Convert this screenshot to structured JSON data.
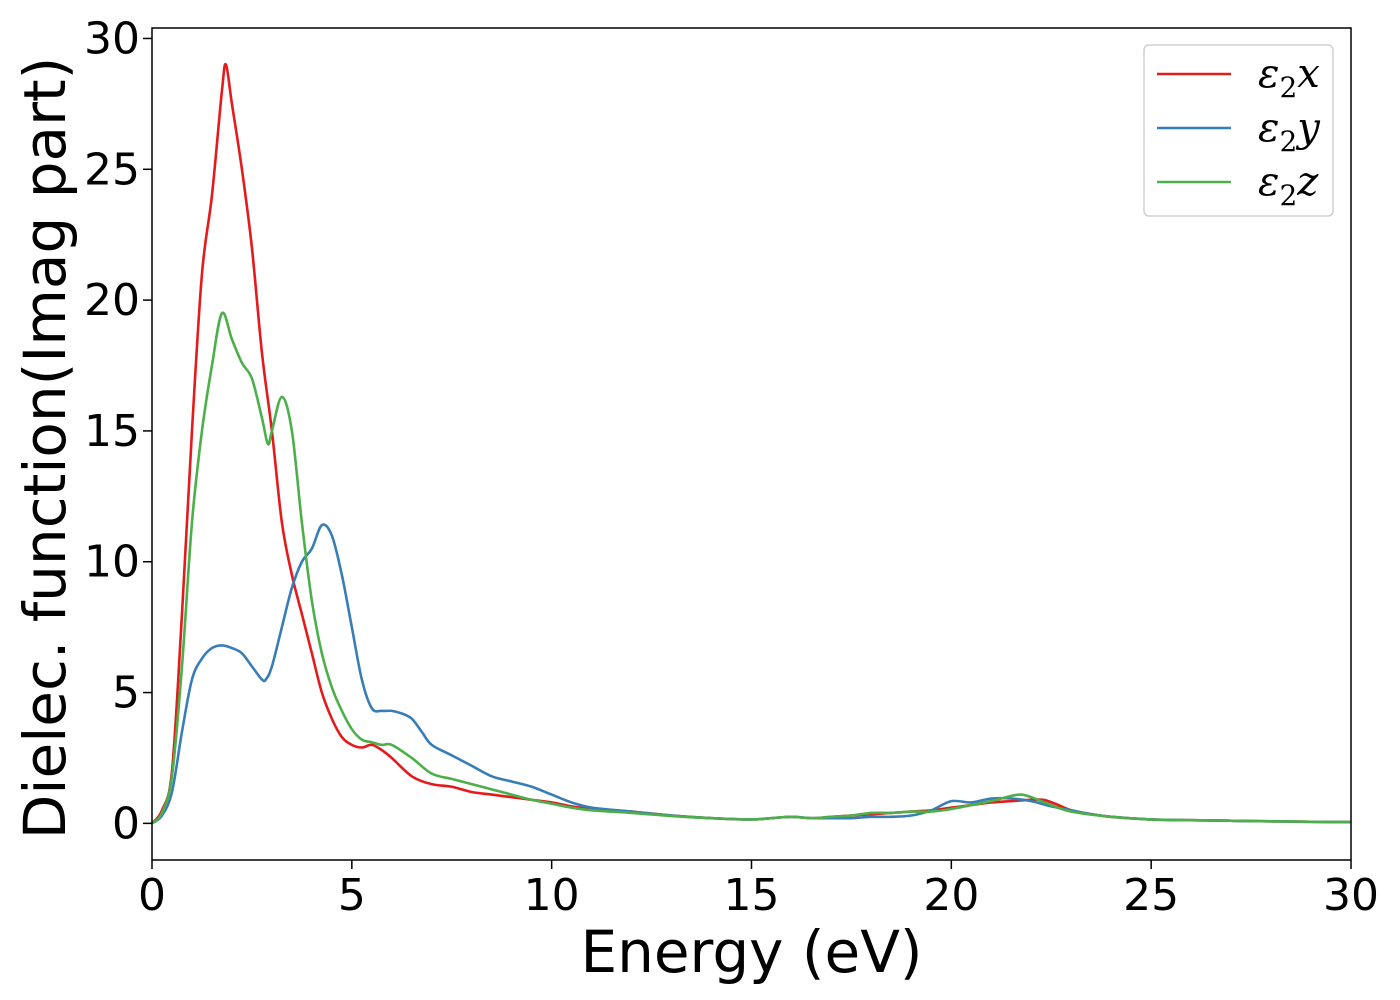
{
  "chart_data": {
    "type": "line",
    "title": "",
    "xlabel": "Energy (eV)",
    "ylabel": "Dielec. function(Imag part)",
    "xlim": [
      0,
      30
    ],
    "ylim": [
      -1.4,
      30.4
    ],
    "xticks": [
      0,
      5,
      10,
      15,
      20,
      25,
      30
    ],
    "yticks": [
      0,
      5,
      10,
      15,
      20,
      25,
      30
    ],
    "grid": false,
    "legend_position": "top-right",
    "series": [
      {
        "name": "ε2x",
        "legend": {
          "symbol": "ε",
          "sub": "2",
          "var": "x"
        },
        "color": "#e41a1c",
        "x": [
          0,
          0.25,
          0.5,
          0.75,
          1.0,
          1.25,
          1.5,
          1.75,
          1.85,
          2.0,
          2.25,
          2.5,
          2.75,
          3.0,
          3.25,
          3.5,
          3.75,
          4.0,
          4.25,
          4.5,
          4.75,
          5.0,
          5.25,
          5.5,
          5.75,
          6.0,
          6.5,
          7.0,
          7.5,
          8.0,
          8.5,
          9.0,
          9.5,
          10.0,
          10.5,
          11.0,
          12.0,
          13.0,
          14.0,
          15.0,
          15.5,
          16.0,
          16.5,
          17.0,
          17.5,
          18.0,
          18.5,
          19.0,
          19.5,
          20.0,
          20.5,
          21.0,
          21.5,
          22.0,
          22.3,
          22.6,
          23.0,
          23.5,
          24.0,
          25.0,
          26.0,
          27.0,
          28.0,
          29.0,
          30.0
        ],
        "y": [
          0,
          0.5,
          2.0,
          8.0,
          15.0,
          21.0,
          24.0,
          28.0,
          29.0,
          27.5,
          25.0,
          22.0,
          18.0,
          15.0,
          11.5,
          9.5,
          8.0,
          6.5,
          5.0,
          4.0,
          3.3,
          3.0,
          2.9,
          3.0,
          2.8,
          2.5,
          1.8,
          1.5,
          1.4,
          1.2,
          1.1,
          1.0,
          0.9,
          0.8,
          0.65,
          0.55,
          0.45,
          0.3,
          0.2,
          0.15,
          0.2,
          0.25,
          0.2,
          0.25,
          0.3,
          0.35,
          0.4,
          0.45,
          0.5,
          0.6,
          0.7,
          0.8,
          0.85,
          0.9,
          0.9,
          0.75,
          0.5,
          0.35,
          0.25,
          0.15,
          0.12,
          0.1,
          0.08,
          0.06,
          0.05
        ]
      },
      {
        "name": "ε2y",
        "legend": {
          "symbol": "ε",
          "sub": "2",
          "var": "y"
        },
        "color": "#377eb8",
        "x": [
          0,
          0.25,
          0.5,
          0.75,
          1.0,
          1.25,
          1.5,
          1.75,
          2.0,
          2.25,
          2.5,
          2.75,
          2.85,
          3.0,
          3.25,
          3.5,
          3.75,
          4.0,
          4.25,
          4.5,
          4.75,
          5.0,
          5.25,
          5.5,
          5.75,
          6.0,
          6.25,
          6.5,
          6.75,
          7.0,
          7.5,
          8.0,
          8.5,
          9.0,
          9.5,
          10.0,
          10.5,
          11.0,
          12.0,
          13.0,
          14.0,
          15.0,
          15.5,
          16.0,
          16.5,
          17.0,
          17.5,
          18.0,
          18.5,
          19.0,
          19.5,
          20.0,
          20.5,
          21.0,
          21.5,
          22.0,
          22.5,
          23.0,
          23.5,
          24.0,
          25.0,
          26.0,
          27.0,
          28.0,
          29.0,
          30.0
        ],
        "y": [
          0,
          0.3,
          1.2,
          3.5,
          5.5,
          6.3,
          6.7,
          6.8,
          6.7,
          6.5,
          6.0,
          5.5,
          5.5,
          6.0,
          7.5,
          9.0,
          10.0,
          10.5,
          11.4,
          11.0,
          9.5,
          7.5,
          5.5,
          4.4,
          4.3,
          4.3,
          4.2,
          4.0,
          3.5,
          3.0,
          2.6,
          2.2,
          1.8,
          1.6,
          1.4,
          1.1,
          0.8,
          0.6,
          0.45,
          0.3,
          0.2,
          0.15,
          0.2,
          0.25,
          0.2,
          0.2,
          0.2,
          0.25,
          0.25,
          0.3,
          0.5,
          0.85,
          0.8,
          0.95,
          0.95,
          0.85,
          0.65,
          0.5,
          0.35,
          0.25,
          0.15,
          0.12,
          0.1,
          0.08,
          0.06,
          0.05
        ]
      },
      {
        "name": "ε2z",
        "legend": {
          "symbol": "ε",
          "sub": "2",
          "var": "z"
        },
        "color": "#4daf4a",
        "x": [
          0,
          0.25,
          0.5,
          0.75,
          1.0,
          1.25,
          1.5,
          1.75,
          2.0,
          2.25,
          2.5,
          2.75,
          2.9,
          3.0,
          3.25,
          3.5,
          3.75,
          4.0,
          4.25,
          4.5,
          4.75,
          5.0,
          5.25,
          5.5,
          5.75,
          6.0,
          6.5,
          7.0,
          7.5,
          8.0,
          8.5,
          9.0,
          9.5,
          10.0,
          10.5,
          11.0,
          12.0,
          13.0,
          14.0,
          15.0,
          15.5,
          16.0,
          16.5,
          17.0,
          17.5,
          18.0,
          18.5,
          19.0,
          19.5,
          20.0,
          20.5,
          21.0,
          21.5,
          21.75,
          22.0,
          22.5,
          23.0,
          24.0,
          25.0,
          26.0,
          27.0,
          28.0,
          29.0,
          30.0
        ],
        "y": [
          0,
          0.4,
          1.8,
          6.0,
          11.5,
          15.0,
          17.5,
          19.5,
          18.5,
          17.6,
          17.0,
          15.5,
          14.5,
          15.0,
          16.3,
          15.0,
          11.5,
          8.5,
          6.5,
          5.2,
          4.3,
          3.6,
          3.2,
          3.1,
          3.0,
          3.0,
          2.5,
          1.9,
          1.7,
          1.5,
          1.3,
          1.1,
          0.9,
          0.75,
          0.6,
          0.5,
          0.4,
          0.28,
          0.2,
          0.15,
          0.2,
          0.25,
          0.2,
          0.25,
          0.3,
          0.4,
          0.4,
          0.45,
          0.45,
          0.55,
          0.7,
          0.85,
          1.05,
          1.1,
          1.0,
          0.7,
          0.45,
          0.25,
          0.15,
          0.12,
          0.1,
          0.08,
          0.06,
          0.05
        ]
      }
    ]
  }
}
